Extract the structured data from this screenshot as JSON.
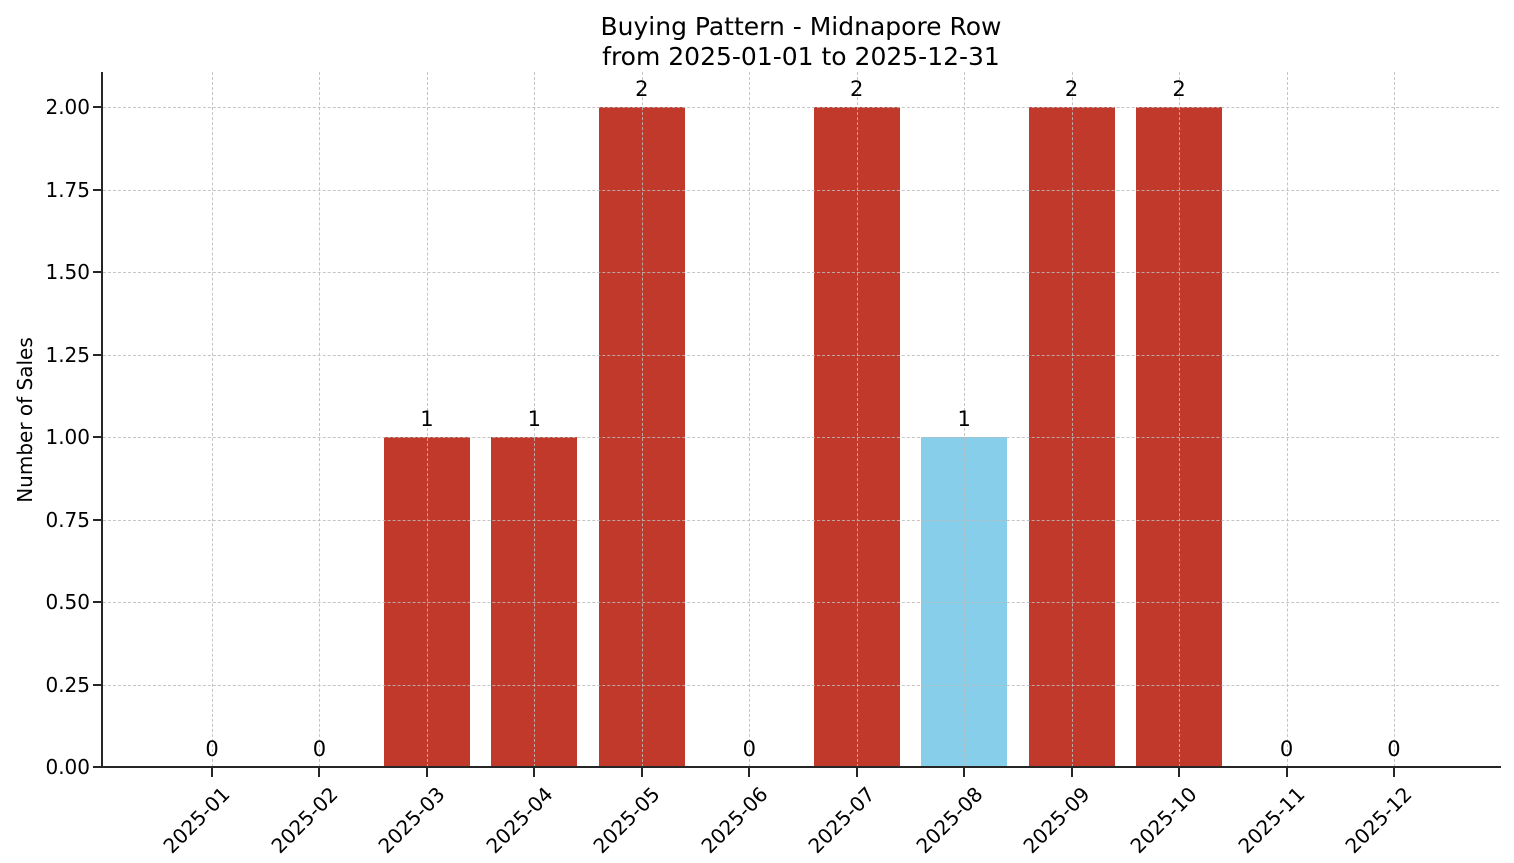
{
  "figure": {
    "title_line1": "Buying Pattern - Midnapore Row",
    "title_line2": "from 2025-01-01 to 2025-12-31",
    "ylabel": "Number of Sales"
  },
  "chart_data": {
    "type": "bar",
    "title": "Buying Pattern - Midnapore Row\nfrom 2025-01-01 to 2025-12-31",
    "xlabel": "",
    "ylabel": "Number of Sales",
    "categories": [
      "2025-01",
      "2025-02",
      "2025-03",
      "2025-04",
      "2025-05",
      "2025-06",
      "2025-07",
      "2025-08",
      "2025-09",
      "2025-10",
      "2025-11",
      "2025-12"
    ],
    "values": [
      0,
      0,
      1,
      1,
      2,
      0,
      2,
      1,
      2,
      2,
      0,
      0
    ],
    "value_labels": [
      "0",
      "0",
      "1",
      "1",
      "2",
      "0",
      "2",
      "1",
      "2",
      "2",
      "0",
      "0"
    ],
    "bar_colors": [
      "#c0392b",
      "#c0392b",
      "#c0392b",
      "#c0392b",
      "#c0392b",
      "#c0392b",
      "#c0392b",
      "#87ceeb",
      "#c0392b",
      "#c0392b",
      "#c0392b",
      "#c0392b"
    ],
    "ytick_labels": [
      "0.00",
      "0.25",
      "0.50",
      "0.75",
      "1.00",
      "1.25",
      "1.50",
      "1.75",
      "2.00"
    ],
    "ytick_values": [
      0,
      0.25,
      0.5,
      0.75,
      1.0,
      1.25,
      1.5,
      1.75,
      2.0
    ],
    "ylim": [
      0,
      2.1
    ],
    "grid": "dashed, both axes, drawn above bars",
    "legend": "none",
    "colors": {
      "bar_default": "#c0392b",
      "bar_highlight": "#87ceeb",
      "grid": "#bbbbbb",
      "axis": "#262626",
      "text": "#000000",
      "background": "#ffffff"
    }
  }
}
